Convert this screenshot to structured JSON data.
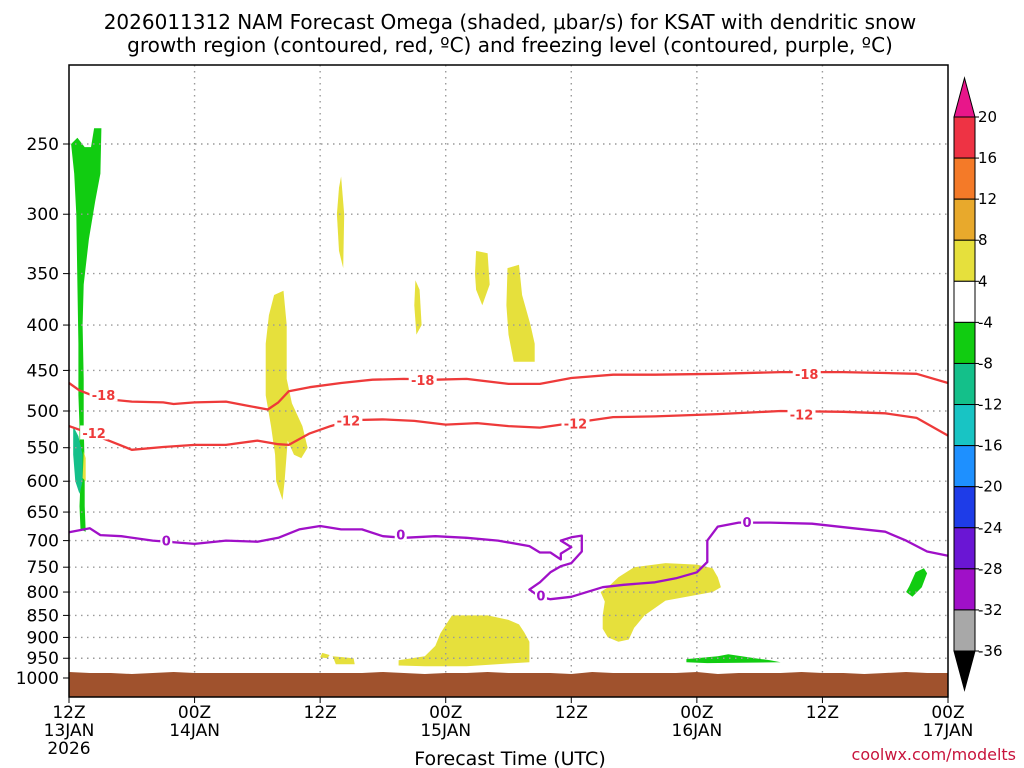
{
  "chart_data": {
    "type": "time-height cross section",
    "title_line1": "2026011312 NAM Forecast Omega (shaded, μbar/s) for KSAT with dendritic snow",
    "title_line2": "growth region (contoured, red, ºC) and freezing level (contoured, purple, ºC)",
    "xlabel": "Forecast Time (UTC)",
    "credit": "coolwx.com/modelts",
    "x_range_hours": [
      0,
      84
    ],
    "x_ticks": [
      {
        "hour": 0,
        "line1": "12Z",
        "line2": "13JAN",
        "line3": "2026"
      },
      {
        "hour": 12,
        "line1": "00Z",
        "line2": "14JAN",
        "line3": ""
      },
      {
        "hour": 24,
        "line1": "12Z",
        "line2": "",
        "line3": ""
      },
      {
        "hour": 36,
        "line1": "00Z",
        "line2": "15JAN",
        "line3": ""
      },
      {
        "hour": 48,
        "line1": "12Z",
        "line2": "",
        "line3": ""
      },
      {
        "hour": 60,
        "line1": "00Z",
        "line2": "16JAN",
        "line3": ""
      },
      {
        "hour": 72,
        "line1": "12Z",
        "line2": "",
        "line3": ""
      },
      {
        "hour": 84,
        "line1": "00Z",
        "line2": "17JAN",
        "line3": ""
      }
    ],
    "y_ticks_hpa": [
      250,
      300,
      350,
      400,
      450,
      500,
      550,
      600,
      650,
      700,
      750,
      800,
      850,
      900,
      950,
      1000
    ],
    "y_range_hpa": [
      200,
      1020
    ],
    "colorbar": {
      "labels": [
        "20",
        "16",
        "12",
        "8",
        "4",
        "-4",
        "-8",
        "-12",
        "-16",
        "-20",
        "-24",
        "-28",
        "-32",
        "-36"
      ],
      "segments": [
        {
          "color": "#ee3344",
          "top": 20,
          "bottom": 16
        },
        {
          "color": "#f47a28",
          "top": 16,
          "bottom": 12
        },
        {
          "color": "#e8a92c",
          "top": 12,
          "bottom": 8
        },
        {
          "color": "#e6e03c",
          "top": 8,
          "bottom": 4
        },
        {
          "color": "#ffffff",
          "top": 4,
          "bottom": -4
        },
        {
          "color": "#11cc11",
          "top": -4,
          "bottom": -8
        },
        {
          "color": "#14c08a",
          "top": -8,
          "bottom": -12
        },
        {
          "color": "#18c4c4",
          "top": -12,
          "bottom": -16
        },
        {
          "color": "#1e90ff",
          "top": -16,
          "bottom": -20
        },
        {
          "color": "#1e3ce8",
          "top": -20,
          "bottom": -24
        },
        {
          "color": "#6a16d4",
          "top": -24,
          "bottom": -28
        },
        {
          "color": "#a010c8",
          "top": -28,
          "bottom": -32
        },
        {
          "color": "#a8a8a8",
          "top": -32,
          "bottom": -36
        }
      ],
      "top_triangle_color": "#e8168a",
      "bottom_triangle_color": "#000000"
    },
    "ground_color": "#a0522d",
    "contours": [
      {
        "name": "dgz-minus18",
        "value": -18,
        "color": "#ee3a3a",
        "points": [
          [
            0,
            465
          ],
          [
            1,
            474
          ],
          [
            3,
            484
          ],
          [
            6,
            488
          ],
          [
            9,
            489
          ],
          [
            10,
            491
          ],
          [
            12,
            489
          ],
          [
            15,
            488
          ],
          [
            17,
            493
          ],
          [
            19,
            498
          ],
          [
            20,
            489
          ],
          [
            21,
            475
          ],
          [
            23,
            470
          ],
          [
            26,
            465
          ],
          [
            29,
            461
          ],
          [
            32,
            460
          ],
          [
            35,
            461
          ],
          [
            38,
            460
          ],
          [
            42,
            466
          ],
          [
            45,
            466
          ],
          [
            48,
            459
          ],
          [
            52,
            455
          ],
          [
            56,
            455
          ],
          [
            62,
            454
          ],
          [
            68,
            452
          ],
          [
            74,
            452
          ],
          [
            78,
            453
          ],
          [
            81,
            454
          ],
          [
            84,
            465
          ]
        ],
        "labels": [
          [
            3.3,
            480
          ],
          [
            33.8,
            462
          ],
          [
            70.5,
            455
          ]
        ]
      },
      {
        "name": "dgz-minus12",
        "value": -12,
        "color": "#ee3a3a",
        "points": [
          [
            0,
            520
          ],
          [
            2,
            530
          ],
          [
            4,
            541
          ],
          [
            6,
            553
          ],
          [
            9,
            549
          ],
          [
            12,
            546
          ],
          [
            15,
            546
          ],
          [
            18,
            540
          ],
          [
            20,
            545
          ],
          [
            21,
            546
          ],
          [
            23,
            530
          ],
          [
            25,
            520
          ],
          [
            27,
            512
          ],
          [
            30,
            511
          ],
          [
            33,
            513
          ],
          [
            36,
            518
          ],
          [
            39,
            516
          ],
          [
            42,
            520
          ],
          [
            45,
            522
          ],
          [
            48,
            516
          ],
          [
            52,
            508
          ],
          [
            56,
            507
          ],
          [
            62,
            504
          ],
          [
            68,
            500
          ],
          [
            74,
            501
          ],
          [
            78,
            503
          ],
          [
            81,
            509
          ],
          [
            84,
            533
          ]
        ],
        "labels": [
          [
            2.4,
            530
          ],
          [
            26.7,
            513
          ],
          [
            48.4,
            517
          ],
          [
            70,
            505
          ]
        ]
      },
      {
        "name": "freezing-level",
        "value": 0,
        "color": "#a010c8",
        "points": [
          [
            0,
            685
          ],
          [
            2,
            678
          ],
          [
            3,
            690
          ],
          [
            5,
            692
          ],
          [
            8,
            700
          ],
          [
            12,
            706
          ],
          [
            15,
            700
          ],
          [
            18,
            702
          ],
          [
            20,
            695
          ],
          [
            22,
            680
          ],
          [
            24,
            674
          ],
          [
            26,
            680
          ],
          [
            28,
            680
          ],
          [
            30,
            692
          ],
          [
            32,
            695
          ],
          [
            35,
            692
          ],
          [
            38,
            695
          ],
          [
            41,
            700
          ],
          [
            44,
            710
          ],
          [
            45,
            722
          ],
          [
            46,
            722
          ],
          [
            47,
            735
          ],
          [
            47,
            724
          ],
          [
            48,
            712
          ],
          [
            47,
            700
          ],
          [
            48,
            694
          ],
          [
            49,
            691
          ],
          [
            49,
            720
          ],
          [
            48,
            742
          ],
          [
            47,
            748
          ],
          [
            46,
            760
          ],
          [
            45,
            780
          ],
          [
            44,
            795
          ],
          [
            45,
            810
          ],
          [
            46,
            815
          ],
          [
            48,
            810
          ],
          [
            51,
            790
          ],
          [
            53,
            785
          ],
          [
            56,
            780
          ],
          [
            58,
            772
          ],
          [
            60,
            760
          ],
          [
            61,
            740
          ],
          [
            61,
            700
          ],
          [
            62,
            675
          ],
          [
            64,
            668
          ],
          [
            67,
            668
          ],
          [
            71,
            670
          ],
          [
            75,
            678
          ],
          [
            78,
            684
          ],
          [
            80,
            700
          ],
          [
            82,
            720
          ],
          [
            84,
            728
          ]
        ],
        "labels": [
          [
            9.3,
            701
          ],
          [
            31.7,
            690
          ],
          [
            45.1,
            808
          ],
          [
            64.8,
            668
          ]
        ]
      }
    ],
    "shaded_regions": [
      {
        "value": -6,
        "pts": [
          [
            0.2,
            250
          ],
          [
            0.5,
            270
          ],
          [
            0.7,
            300
          ],
          [
            0.8,
            360
          ],
          [
            0.9,
            420
          ],
          [
            0.9,
            480
          ],
          [
            1.0,
            520
          ],
          [
            1.0,
            560
          ],
          [
            1.1,
            600
          ],
          [
            1.0,
            640
          ],
          [
            1.1,
            680
          ],
          [
            1.6,
            684
          ],
          [
            1.5,
            640
          ],
          [
            1.5,
            580
          ],
          [
            1.4,
            520
          ],
          [
            1.4,
            460
          ],
          [
            1.3,
            400
          ],
          [
            1.4,
            360
          ],
          [
            1.9,
            320
          ],
          [
            2.5,
            290
          ],
          [
            3.0,
            270
          ],
          [
            3.1,
            240
          ],
          [
            2.4,
            240
          ],
          [
            2.1,
            252
          ],
          [
            1.5,
            252
          ],
          [
            0.8,
            246
          ]
        ]
      },
      {
        "value": -10,
        "pts": [
          [
            0.4,
            520
          ],
          [
            0.9,
            534
          ],
          [
            1.3,
            560
          ],
          [
            1.3,
            600
          ],
          [
            1.0,
            620
          ],
          [
            0.6,
            600
          ],
          [
            0.4,
            560
          ]
        ]
      },
      {
        "value": -6,
        "pts": [
          [
            80.0,
            800
          ],
          [
            80.3,
            788
          ],
          [
            80.9,
            760
          ],
          [
            81.7,
            752
          ],
          [
            82.0,
            762
          ],
          [
            81.5,
            790
          ],
          [
            80.6,
            810
          ]
        ]
      },
      {
        "value": -6,
        "pts": [
          [
            59.0,
            952
          ],
          [
            62.0,
            945
          ],
          [
            63.0,
            940
          ],
          [
            65.0,
            948
          ],
          [
            67.0,
            955
          ],
          [
            68.0,
            960
          ],
          [
            61.0,
            962
          ],
          [
            59.0,
            960
          ]
        ]
      },
      {
        "value": 6,
        "pts": [
          [
            1.4,
            555
          ],
          [
            1.6,
            565
          ],
          [
            1.6,
            600
          ],
          [
            1.3,
            595
          ]
        ]
      },
      {
        "value": 6,
        "pts": [
          [
            26.0,
            272
          ],
          [
            26.3,
            300
          ],
          [
            26.2,
            345
          ],
          [
            25.8,
            330
          ],
          [
            25.6,
            300
          ],
          [
            25.8,
            280
          ]
        ]
      },
      {
        "value": 6,
        "pts": [
          [
            19.6,
            370
          ],
          [
            20.5,
            366
          ],
          [
            20.8,
            400
          ],
          [
            20.8,
            460
          ],
          [
            21.3,
            490
          ],
          [
            22.3,
            520
          ],
          [
            22.8,
            550
          ],
          [
            22.2,
            565
          ],
          [
            21.5,
            560
          ],
          [
            20.9,
            540
          ],
          [
            20.6,
            600
          ],
          [
            20.4,
            630
          ],
          [
            19.8,
            600
          ],
          [
            19.7,
            560
          ],
          [
            19.3,
            520
          ],
          [
            18.8,
            480
          ],
          [
            18.8,
            420
          ],
          [
            19.1,
            390
          ]
        ]
      },
      {
        "value": 6,
        "pts": [
          [
            33.1,
            356
          ],
          [
            33.5,
            365
          ],
          [
            33.7,
            400
          ],
          [
            33.2,
            410
          ],
          [
            33.0,
            380
          ]
        ]
      },
      {
        "value": 6,
        "pts": [
          [
            38.9,
            330
          ],
          [
            40.0,
            332
          ],
          [
            40.2,
            360
          ],
          [
            39.5,
            380
          ],
          [
            38.9,
            365
          ],
          [
            38.8,
            350
          ]
        ]
      },
      {
        "value": 6,
        "pts": [
          [
            41.9,
            345
          ],
          [
            43.0,
            342
          ],
          [
            43.3,
            370
          ],
          [
            44.1,
            400
          ],
          [
            44.5,
            420
          ],
          [
            44.5,
            440
          ],
          [
            42.5,
            440
          ],
          [
            42.0,
            410
          ],
          [
            41.8,
            380
          ]
        ]
      },
      {
        "value": 6,
        "pts": [
          [
            36.6,
            850
          ],
          [
            40.0,
            850
          ],
          [
            42.0,
            860
          ],
          [
            43.0,
            870
          ],
          [
            43.5,
            888
          ],
          [
            44.0,
            910
          ],
          [
            44.0,
            960
          ],
          [
            42.0,
            963
          ],
          [
            38.0,
            970
          ],
          [
            34.0,
            970
          ],
          [
            31.5,
            968
          ],
          [
            31.5,
            955
          ],
          [
            34.0,
            945
          ],
          [
            35.0,
            920
          ],
          [
            35.5,
            890
          ]
        ]
      },
      {
        "value": 6,
        "pts": [
          [
            25.2,
            945
          ],
          [
            27.2,
            950
          ],
          [
            27.3,
            965
          ],
          [
            25.5,
            965
          ]
        ]
      },
      {
        "value": 6,
        "pts": [
          [
            24.2,
            937
          ],
          [
            24.9,
            942
          ],
          [
            24.7,
            950
          ],
          [
            24.0,
            948
          ]
        ]
      },
      {
        "value": 6,
        "pts": [
          [
            50.8,
            800
          ],
          [
            51.5,
            790
          ],
          [
            52.5,
            770
          ],
          [
            54.0,
            750
          ],
          [
            57.0,
            742
          ],
          [
            60.0,
            745
          ],
          [
            61.5,
            752
          ],
          [
            62.0,
            770
          ],
          [
            62.3,
            790
          ],
          [
            61.5,
            800
          ],
          [
            60.0,
            806
          ],
          [
            57.0,
            818
          ],
          [
            55.0,
            850
          ],
          [
            54.0,
            878
          ],
          [
            53.5,
            905
          ],
          [
            52.5,
            910
          ],
          [
            51.5,
            900
          ],
          [
            51.0,
            880
          ],
          [
            51.0,
            850
          ],
          [
            51.2,
            820
          ]
        ]
      }
    ]
  }
}
